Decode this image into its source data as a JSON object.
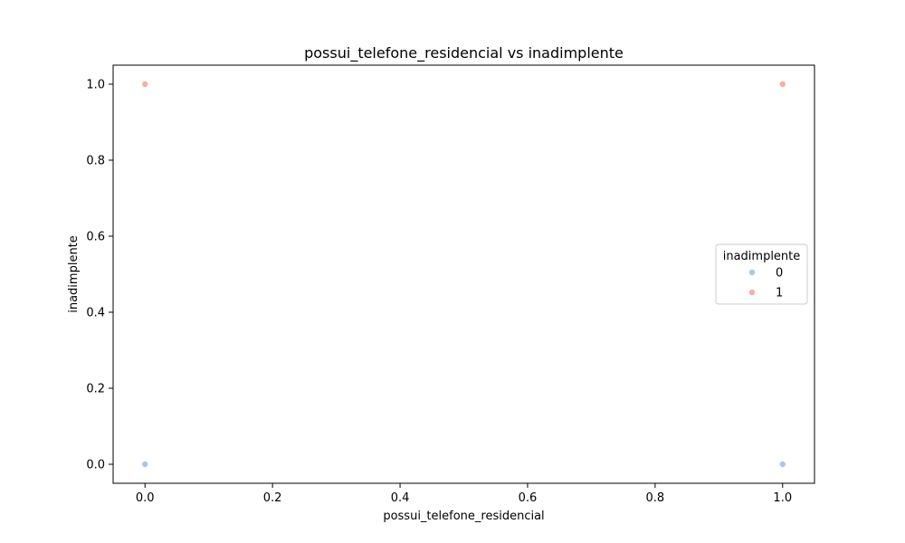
{
  "chart_data": {
    "type": "scatter",
    "title": "possui_telefone_residencial vs inadimplente",
    "xlabel": "possui_telefone_residencial",
    "ylabel": "inadimplente",
    "xlim": [
      -0.05,
      1.05
    ],
    "ylim": [
      -0.05,
      1.05
    ],
    "xticks": [
      0.0,
      0.2,
      0.4,
      0.6,
      0.8,
      1.0
    ],
    "yticks": [
      0.0,
      0.2,
      0.4,
      0.6,
      0.8,
      1.0
    ],
    "xtick_labels": [
      "0.0",
      "0.2",
      "0.4",
      "0.6",
      "0.8",
      "1.0"
    ],
    "ytick_labels": [
      "0.0",
      "0.2",
      "0.4",
      "0.6",
      "0.8",
      "1.0"
    ],
    "grid": false,
    "legend": {
      "title": "inadimplente",
      "placement": "center-right"
    },
    "series": [
      {
        "name": "0",
        "color": "#a1c9f4",
        "x": [
          0.0,
          1.0
        ],
        "y": [
          0.0,
          0.0
        ]
      },
      {
        "name": "1",
        "color": "#f6b09b",
        "x": [
          0.0,
          1.0
        ],
        "y": [
          1.0,
          1.0
        ]
      }
    ]
  }
}
